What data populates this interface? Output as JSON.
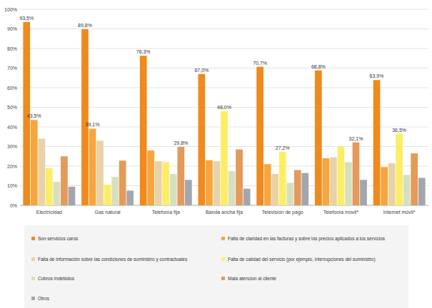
{
  "chart_data": {
    "type": "bar",
    "categories": [
      "Electricidad",
      "Gas natural",
      "Telefonía fija",
      "Banda ancha fija",
      "Televisión de pago",
      "Telefonía móvil*",
      "Internet móvil*"
    ],
    "series": [
      {
        "name": "Son servicios caros",
        "color": "#ef8a1f",
        "values": [
          93.5,
          89.8,
          76.3,
          67.0,
          70.7,
          68.8,
          63.9
        ],
        "value_labels": [
          "93,5%",
          "89,8%",
          "76,3%",
          "67,0%",
          "70,7%",
          "68,8%",
          "63,9%"
        ]
      },
      {
        "name": "Falta de claridad en las facturas y sobre los precios aplicados a los servicios",
        "color": "#f6a63c",
        "values": [
          43.5,
          39.1,
          28,
          23,
          21,
          24,
          19.5
        ],
        "value_labels": [
          "43,5%",
          "39,1%",
          null,
          null,
          null,
          null,
          null
        ]
      },
      {
        "name": "Falta de información sobre las condiciones de suministro y contractuales",
        "color": "#e9d2a7",
        "values": [
          34,
          33,
          22.5,
          22.5,
          16,
          24.5,
          21.5
        ]
      },
      {
        "name": "Falta de calidad del servicio (por ejemplo, interrupciones del suministro)",
        "color": "#fbee66",
        "values": [
          19,
          10.5,
          22,
          48.0,
          27.2,
          30,
          36.5
        ],
        "value_labels": [
          null,
          null,
          null,
          "48,0%",
          "27,2%",
          null,
          "36,5%"
        ]
      },
      {
        "name": "Cobros Indebidos",
        "color": "#d8dfbf",
        "values": [
          12,
          14.5,
          16,
          17.5,
          11.5,
          22,
          15.5
        ]
      },
      {
        "name": "Mala atencion al cliente",
        "color": "#e39a5a",
        "values": [
          25,
          22.8,
          29.8,
          28.5,
          18,
          32.1,
          26.5
        ],
        "value_labels": [
          null,
          null,
          "29,8%",
          null,
          null,
          "32,1%",
          null
        ]
      },
      {
        "name": "Otros",
        "color": "#a4a6ae",
        "values": [
          9.5,
          7.5,
          13,
          8.5,
          16.5,
          13,
          14
        ]
      }
    ],
    "ylim": [
      0,
      100
    ],
    "yticks": [
      {
        "value": 0,
        "label": "0%"
      },
      {
        "value": 10,
        "label": "10%"
      },
      {
        "value": 20,
        "label": "20%"
      },
      {
        "value": 30,
        "label": "30%"
      },
      {
        "value": 40,
        "label": "40%"
      },
      {
        "value": 50,
        "label": "50%"
      },
      {
        "value": 60,
        "label": "60%"
      },
      {
        "value": 70,
        "label": "70%"
      },
      {
        "value": 80,
        "label": "80%"
      },
      {
        "value": 90,
        "label": "90%"
      },
      {
        "value": 100,
        "label": "100%"
      }
    ],
    "grid": true,
    "data_labels": true,
    "legend": "bottom"
  }
}
